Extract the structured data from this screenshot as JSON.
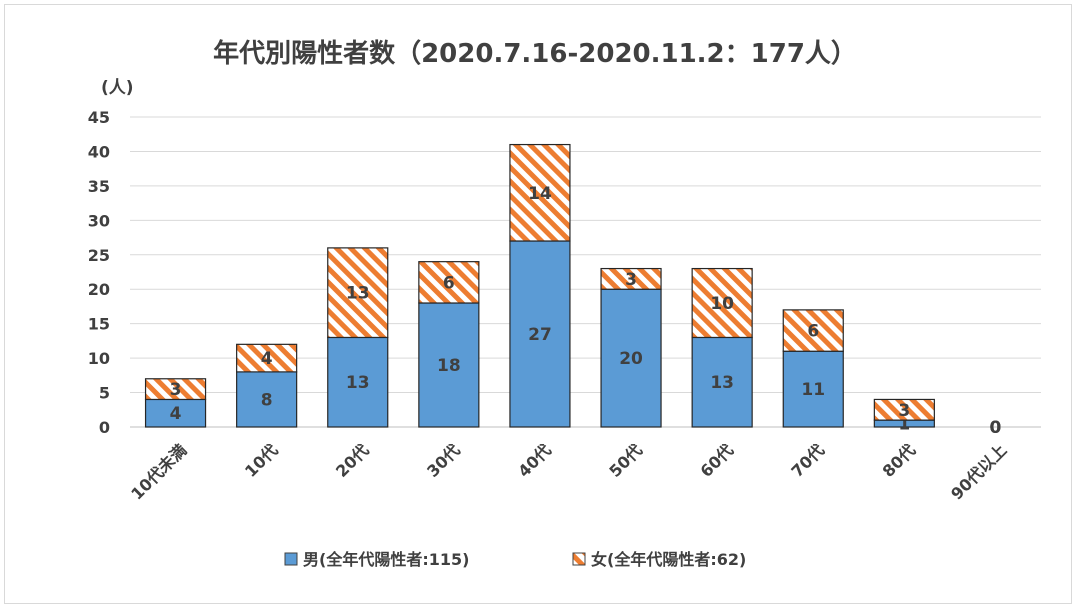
{
  "chart_data": {
    "type": "bar",
    "stacked": true,
    "title": "年代別陽性者数（2020.7.16-2020.11.2：177人）",
    "ylabel": "(人)",
    "ylim": [
      0,
      45
    ],
    "yticks": [
      0,
      5,
      10,
      15,
      20,
      25,
      30,
      35,
      40,
      45
    ],
    "grid": true,
    "legend_position": "bottom",
    "categories": [
      "10代未満",
      "10代",
      "20代",
      "30代",
      "40代",
      "50代",
      "60代",
      "70代",
      "80代",
      "90代以上"
    ],
    "series": [
      {
        "name": "男(全年代陽性者:115)",
        "values": [
          4,
          8,
          13,
          18,
          27,
          20,
          13,
          11,
          1,
          0
        ],
        "color": "#5b9bd5",
        "pattern": "solid"
      },
      {
        "name": "女(全年代陽性者:62)",
        "values": [
          3,
          4,
          13,
          6,
          14,
          3,
          10,
          6,
          3,
          0
        ],
        "color": "#ed7d31",
        "pattern": "diagonal-stripes"
      }
    ]
  }
}
